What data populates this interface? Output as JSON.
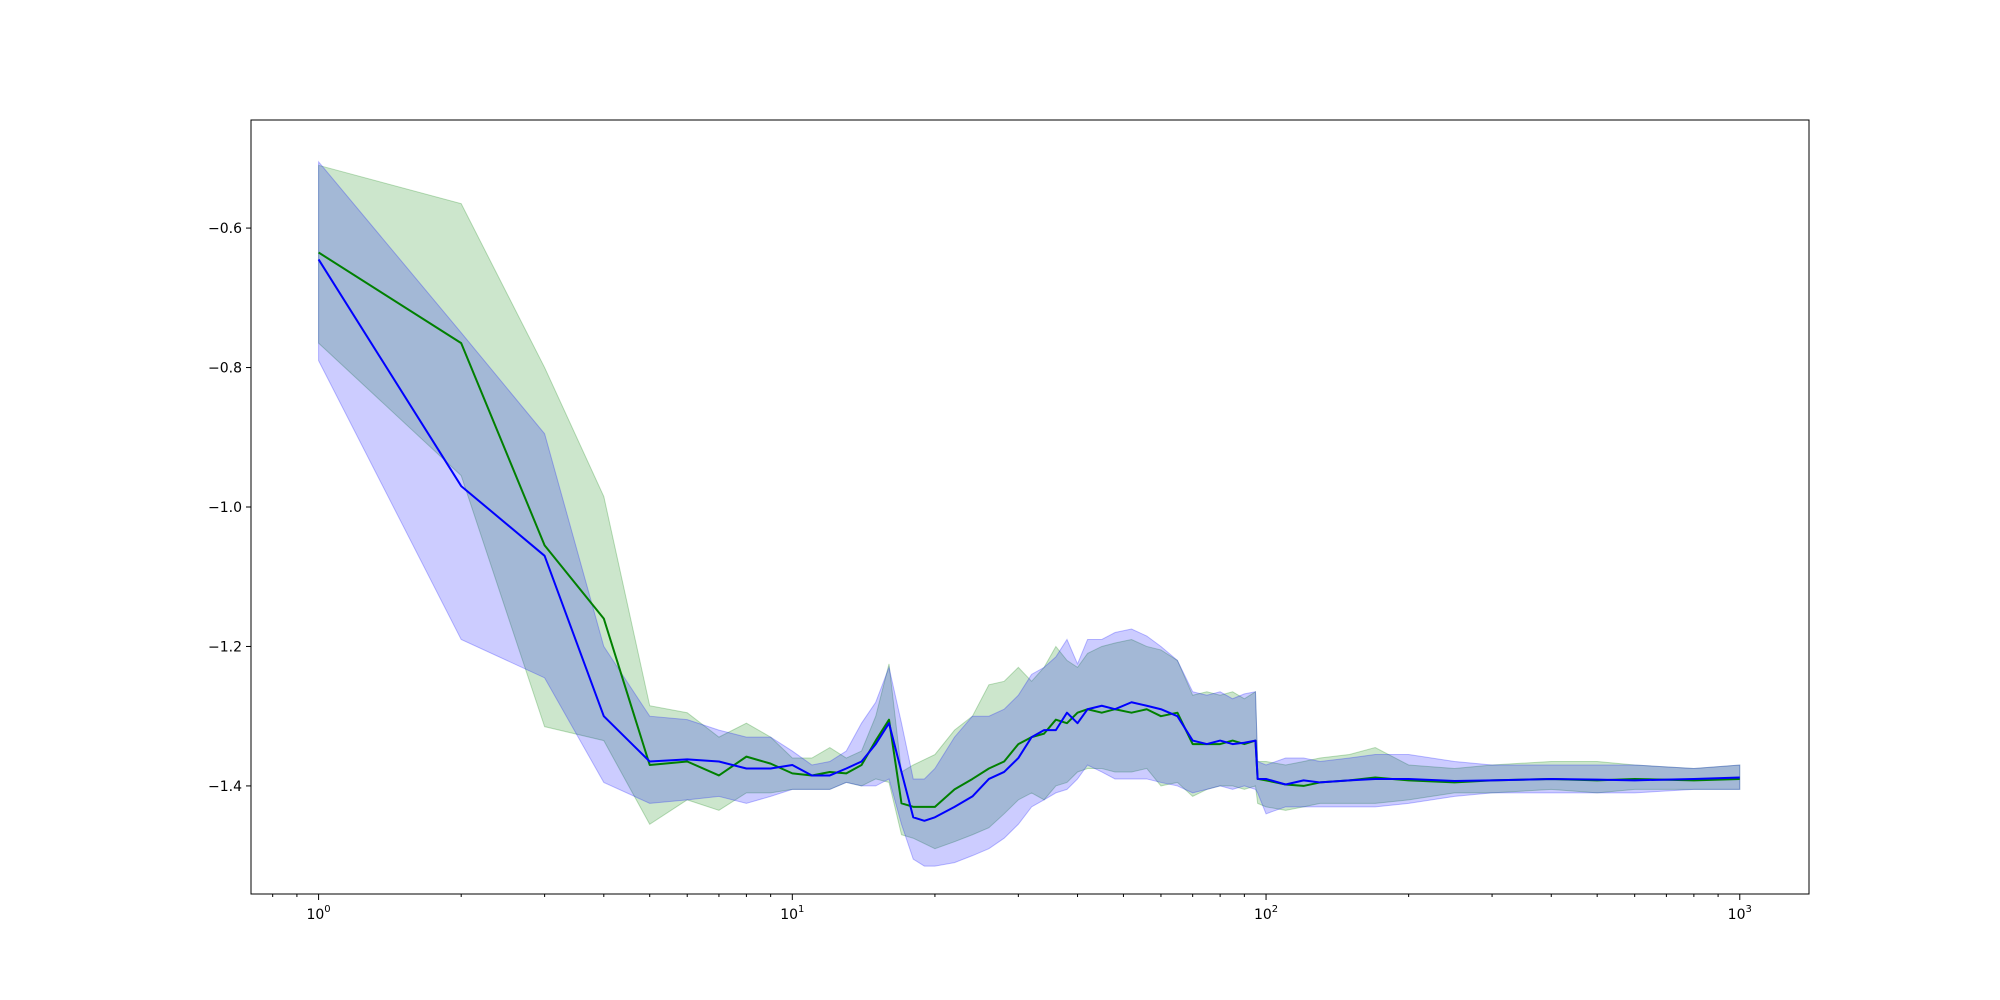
{
  "chart_data": {
    "type": "line",
    "title": "",
    "xlabel": "",
    "ylabel": "",
    "xscale": "log",
    "xlim": [
      0.72,
      1400
    ],
    "ylim": [
      -1.555,
      -0.445
    ],
    "grid": false,
    "x_major_ticks": [
      {
        "value": 1,
        "base": "10",
        "exp": "0"
      },
      {
        "value": 10,
        "base": "10",
        "exp": "1"
      },
      {
        "value": 100,
        "base": "10",
        "exp": "2"
      },
      {
        "value": 1000,
        "base": "10",
        "exp": "3"
      }
    ],
    "y_ticks": [
      {
        "value": -0.6,
        "label": "−0.6"
      },
      {
        "value": -0.8,
        "label": "−0.8"
      },
      {
        "value": -1.0,
        "label": "−1.0"
      },
      {
        "value": -1.2,
        "label": "−1.2"
      },
      {
        "value": -1.4,
        "label": "−1.4"
      }
    ],
    "series": [
      {
        "color": "#008000",
        "band_color": "#008000",
        "band_opacity": 0.2,
        "x": [
          1,
          2,
          3,
          4,
          5,
          6,
          7,
          8,
          9,
          10,
          11,
          12,
          13,
          14,
          15,
          16,
          17,
          18,
          20,
          22,
          24,
          26,
          28,
          30,
          32,
          34,
          36,
          38,
          40,
          42,
          45,
          48,
          52,
          56,
          60,
          65,
          70,
          75,
          80,
          85,
          90,
          95,
          96,
          100,
          110,
          120,
          130,
          150,
          170,
          200,
          250,
          300,
          400,
          500,
          600,
          800,
          1000
        ],
        "y": [
          -0.635,
          -0.765,
          -1.055,
          -1.16,
          -1.37,
          -1.365,
          -1.385,
          -1.358,
          -1.368,
          -1.382,
          -1.385,
          -1.38,
          -1.382,
          -1.37,
          -1.335,
          -1.305,
          -1.425,
          -1.43,
          -1.43,
          -1.405,
          -1.39,
          -1.375,
          -1.365,
          -1.34,
          -1.33,
          -1.325,
          -1.305,
          -1.31,
          -1.295,
          -1.29,
          -1.295,
          -1.29,
          -1.295,
          -1.29,
          -1.3,
          -1.295,
          -1.34,
          -1.34,
          -1.34,
          -1.335,
          -1.34,
          -1.335,
          -1.39,
          -1.392,
          -1.398,
          -1.4,
          -1.395,
          -1.392,
          -1.388,
          -1.392,
          -1.395,
          -1.392,
          -1.39,
          -1.392,
          -1.39,
          -1.392,
          -1.39
        ],
        "upper": [
          -0.51,
          -0.565,
          -0.8,
          -0.985,
          -1.285,
          -1.295,
          -1.33,
          -1.31,
          -1.33,
          -1.36,
          -1.36,
          -1.345,
          -1.36,
          -1.35,
          -1.3,
          -1.225,
          -1.38,
          -1.37,
          -1.355,
          -1.32,
          -1.3,
          -1.255,
          -1.25,
          -1.23,
          -1.25,
          -1.23,
          -1.2,
          -1.22,
          -1.23,
          -1.21,
          -1.2,
          -1.195,
          -1.19,
          -1.2,
          -1.205,
          -1.22,
          -1.27,
          -1.265,
          -1.27,
          -1.265,
          -1.275,
          -1.265,
          -1.365,
          -1.365,
          -1.37,
          -1.365,
          -1.36,
          -1.355,
          -1.345,
          -1.37,
          -1.375,
          -1.37,
          -1.365,
          -1.365,
          -1.37,
          -1.375,
          -1.37
        ],
        "lower": [
          -0.765,
          -0.955,
          -1.315,
          -1.335,
          -1.455,
          -1.42,
          -1.435,
          -1.41,
          -1.41,
          -1.405,
          -1.405,
          -1.405,
          -1.395,
          -1.4,
          -1.39,
          -1.395,
          -1.47,
          -1.475,
          -1.49,
          -1.48,
          -1.47,
          -1.46,
          -1.44,
          -1.42,
          -1.41,
          -1.42,
          -1.4,
          -1.395,
          -1.38,
          -1.375,
          -1.375,
          -1.38,
          -1.38,
          -1.375,
          -1.4,
          -1.395,
          -1.415,
          -1.405,
          -1.4,
          -1.4,
          -1.405,
          -1.4,
          -1.425,
          -1.43,
          -1.435,
          -1.43,
          -1.425,
          -1.425,
          -1.425,
          -1.42,
          -1.41,
          -1.41,
          -1.405,
          -1.41,
          -1.405,
          -1.405,
          -1.405
        ]
      },
      {
        "color": "#0000ff",
        "band_color": "#0000ff",
        "band_opacity": 0.2,
        "x": [
          1,
          2,
          3,
          4,
          5,
          6,
          7,
          8,
          9,
          10,
          11,
          12,
          13,
          14,
          15,
          16,
          17,
          18,
          19,
          20,
          22,
          24,
          26,
          28,
          30,
          32,
          34,
          36,
          38,
          40,
          42,
          45,
          48,
          52,
          56,
          60,
          65,
          70,
          75,
          80,
          85,
          90,
          95,
          96,
          100,
          110,
          120,
          130,
          150,
          170,
          200,
          250,
          300,
          400,
          500,
          600,
          800,
          1000
        ],
        "y": [
          -0.645,
          -0.97,
          -1.07,
          -1.3,
          -1.365,
          -1.362,
          -1.365,
          -1.375,
          -1.375,
          -1.37,
          -1.385,
          -1.385,
          -1.375,
          -1.365,
          -1.34,
          -1.31,
          -1.38,
          -1.445,
          -1.45,
          -1.445,
          -1.43,
          -1.415,
          -1.39,
          -1.38,
          -1.36,
          -1.33,
          -1.32,
          -1.32,
          -1.295,
          -1.31,
          -1.29,
          -1.285,
          -1.29,
          -1.28,
          -1.285,
          -1.29,
          -1.3,
          -1.335,
          -1.34,
          -1.335,
          -1.34,
          -1.338,
          -1.335,
          -1.39,
          -1.39,
          -1.398,
          -1.392,
          -1.395,
          -1.392,
          -1.39,
          -1.39,
          -1.393,
          -1.392,
          -1.39,
          -1.391,
          -1.392,
          -1.39,
          -1.388
        ],
        "upper": [
          -0.505,
          -0.75,
          -0.895,
          -1.2,
          -1.3,
          -1.305,
          -1.32,
          -1.33,
          -1.33,
          -1.35,
          -1.37,
          -1.365,
          -1.35,
          -1.31,
          -1.28,
          -1.23,
          -1.31,
          -1.39,
          -1.39,
          -1.375,
          -1.33,
          -1.3,
          -1.3,
          -1.29,
          -1.27,
          -1.24,
          -1.23,
          -1.215,
          -1.19,
          -1.225,
          -1.19,
          -1.19,
          -1.18,
          -1.175,
          -1.185,
          -1.2,
          -1.22,
          -1.265,
          -1.27,
          -1.265,
          -1.275,
          -1.268,
          -1.265,
          -1.365,
          -1.37,
          -1.36,
          -1.36,
          -1.365,
          -1.36,
          -1.355,
          -1.355,
          -1.365,
          -1.37,
          -1.37,
          -1.37,
          -1.37,
          -1.375,
          -1.37
        ],
        "lower": [
          -0.79,
          -1.19,
          -1.245,
          -1.395,
          -1.425,
          -1.42,
          -1.415,
          -1.425,
          -1.415,
          -1.405,
          -1.405,
          -1.405,
          -1.395,
          -1.4,
          -1.4,
          -1.39,
          -1.455,
          -1.505,
          -1.515,
          -1.515,
          -1.51,
          -1.5,
          -1.49,
          -1.475,
          -1.455,
          -1.43,
          -1.42,
          -1.41,
          -1.405,
          -1.39,
          -1.37,
          -1.38,
          -1.39,
          -1.39,
          -1.39,
          -1.395,
          -1.4,
          -1.41,
          -1.405,
          -1.4,
          -1.405,
          -1.4,
          -1.405,
          -1.41,
          -1.44,
          -1.43,
          -1.43,
          -1.43,
          -1.43,
          -1.43,
          -1.425,
          -1.415,
          -1.41,
          -1.41,
          -1.41,
          -1.41,
          -1.405,
          -1.405
        ]
      }
    ]
  }
}
